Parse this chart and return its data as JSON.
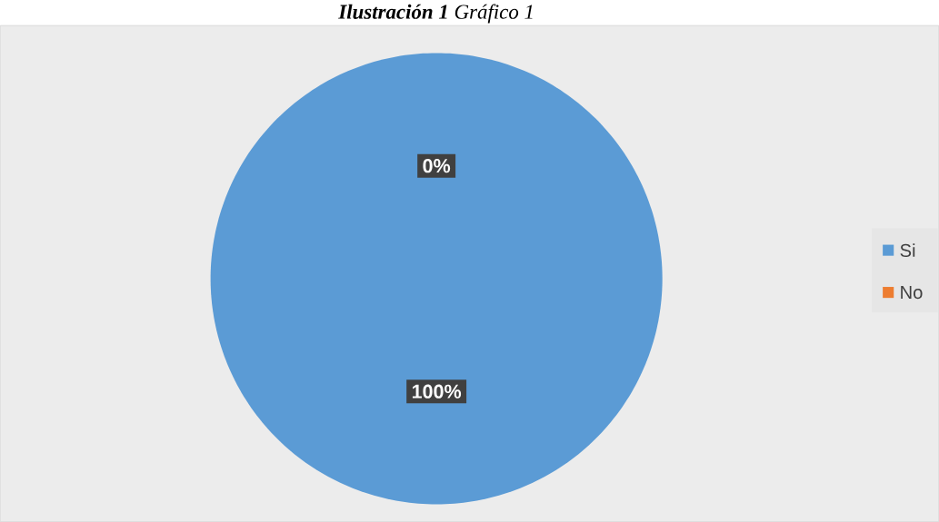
{
  "chart_data": {
    "type": "pie",
    "title": "**Ilustración 1** Gráfico 1",
    "categories": [
      "Si",
      "No"
    ],
    "values": [
      100,
      0
    ],
    "colors": [
      "#5b9bd5",
      "#ed7d31"
    ],
    "value_labels": [
      "100%",
      "0%"
    ],
    "legend": "right"
  }
}
